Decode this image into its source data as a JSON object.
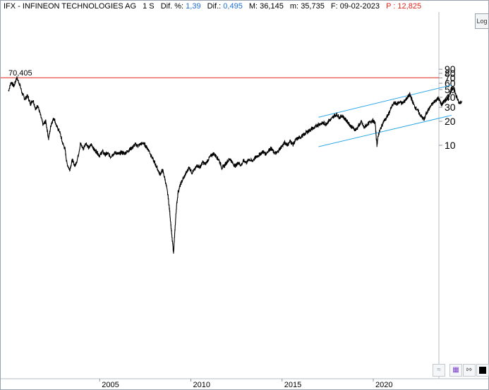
{
  "header": {
    "symbol_name": "IFX - INFINEON TECHNOLOGIES AG",
    "period": "1 S",
    "dif_pct_label": "Dif. %:",
    "dif_pct_value": "1,39",
    "dif_label": "Dif.:",
    "dif_value": "0,495",
    "max_label": "M:",
    "max_value": "36,145",
    "min_label": "m:",
    "min_value": "35,735",
    "date_label": "F:",
    "date_value": "09-02-2023",
    "p_label": "P :",
    "p_value": "12,825"
  },
  "log_button_label": "Log",
  "icons": [
    "wave-icon",
    "save-icon",
    "pin-icon",
    "fill-square-icon"
  ],
  "colors": {
    "price_line": "#000000",
    "channel_lines": "#2ea8e6",
    "max_line": "#e0261b",
    "label_red": "#e0261b",
    "label_blue": "#1f6fd1"
  },
  "chart_data": {
    "type": "line",
    "scale": "log",
    "max_line": {
      "value": 70.405,
      "label": "70,405"
    },
    "y_tick_labels": [
      "90",
      "80",
      "70",
      "60",
      "50",
      "40",
      "30",
      "20",
      "10"
    ],
    "x_tick_labels": [
      "2005",
      "2010",
      "2015",
      "2020"
    ],
    "series": [
      {
        "points": [
          [
            2000.0,
            48
          ],
          [
            2000.15,
            62
          ],
          [
            2000.3,
            55
          ],
          [
            2000.45,
            70.4
          ],
          [
            2000.6,
            60
          ],
          [
            2000.75,
            45
          ],
          [
            2000.9,
            38
          ],
          [
            2001.05,
            42
          ],
          [
            2001.2,
            33
          ],
          [
            2001.35,
            37
          ],
          [
            2001.5,
            28
          ],
          [
            2001.6,
            32
          ],
          [
            2001.75,
            24
          ],
          [
            2001.9,
            18
          ],
          [
            2002.05,
            20
          ],
          [
            2002.2,
            12
          ],
          [
            2002.35,
            19
          ],
          [
            2002.5,
            22
          ],
          [
            2002.65,
            17
          ],
          [
            2002.8,
            15
          ],
          [
            2002.95,
            11
          ],
          [
            2003.1,
            9
          ],
          [
            2003.2,
            6
          ],
          [
            2003.35,
            4.9
          ],
          [
            2003.5,
            6.5
          ],
          [
            2003.65,
            5.5
          ],
          [
            2003.8,
            7
          ],
          [
            2003.95,
            10.5
          ],
          [
            2004.1,
            9
          ],
          [
            2004.25,
            10.8
          ],
          [
            2004.4,
            9.2
          ],
          [
            2004.55,
            10.3
          ],
          [
            2004.7,
            8.8
          ],
          [
            2004.85,
            8.2
          ],
          [
            2005.0,
            7.4
          ],
          [
            2005.15,
            8.4
          ],
          [
            2005.3,
            7.6
          ],
          [
            2005.45,
            7.9
          ],
          [
            2005.6,
            7.2
          ],
          [
            2005.75,
            7.8
          ],
          [
            2005.9,
            8.1
          ],
          [
            2006.05,
            7.7
          ],
          [
            2006.2,
            8.2
          ],
          [
            2006.35,
            7.9
          ],
          [
            2006.5,
            8.3
          ],
          [
            2006.65,
            8.9
          ],
          [
            2006.8,
            9.4
          ],
          [
            2006.95,
            10.3
          ],
          [
            2007.1,
            9.8
          ],
          [
            2007.25,
            10.4
          ],
          [
            2007.4,
            10.6
          ],
          [
            2007.55,
            9.6
          ],
          [
            2007.7,
            8.6
          ],
          [
            2007.85,
            7.2
          ],
          [
            2008.0,
            6.1
          ],
          [
            2008.15,
            5.2
          ],
          [
            2008.3,
            4.3
          ],
          [
            2008.45,
            4.9
          ],
          [
            2008.6,
            3.6
          ],
          [
            2008.75,
            2.3
          ],
          [
            2008.85,
            1.4
          ],
          [
            2008.95,
            0.75
          ],
          [
            2009.05,
            0.45
          ],
          [
            2009.12,
            0.8
          ],
          [
            2009.2,
            1.6
          ],
          [
            2009.3,
            2.6
          ],
          [
            2009.45,
            3.3
          ],
          [
            2009.6,
            3.9
          ],
          [
            2009.75,
            4.5
          ],
          [
            2009.9,
            5.3
          ],
          [
            2010.05,
            4.6
          ],
          [
            2010.2,
            4.9
          ],
          [
            2010.35,
            5.6
          ],
          [
            2010.5,
            5.3
          ],
          [
            2010.65,
            6.1
          ],
          [
            2010.8,
            5.8
          ],
          [
            2010.95,
            6.6
          ],
          [
            2011.1,
            7.4
          ],
          [
            2011.25,
            7.9
          ],
          [
            2011.4,
            7.2
          ],
          [
            2011.55,
            6.5
          ],
          [
            2011.7,
            5.2
          ],
          [
            2011.85,
            5.6
          ],
          [
            2012.0,
            6.3
          ],
          [
            2012.15,
            6.8
          ],
          [
            2012.3,
            5.9
          ],
          [
            2012.45,
            5.5
          ],
          [
            2012.6,
            6.1
          ],
          [
            2012.75,
            5.6
          ],
          [
            2012.9,
            6.4
          ],
          [
            2013.05,
            6.1
          ],
          [
            2013.2,
            6.7
          ],
          [
            2013.35,
            6.3
          ],
          [
            2013.5,
            6.9
          ],
          [
            2013.65,
            7.3
          ],
          [
            2013.8,
            7.8
          ],
          [
            2013.95,
            8.3
          ],
          [
            2014.1,
            7.8
          ],
          [
            2014.25,
            8.6
          ],
          [
            2014.4,
            9.2
          ],
          [
            2014.55,
            8.1
          ],
          [
            2014.7,
            7.9
          ],
          [
            2014.85,
            8.9
          ],
          [
            2015.0,
            9.8
          ],
          [
            2015.15,
            10.8
          ],
          [
            2015.3,
            10.1
          ],
          [
            2015.45,
            11.3
          ],
          [
            2015.6,
            10.2
          ],
          [
            2015.75,
            11.7
          ],
          [
            2015.9,
            12.3
          ],
          [
            2016.05,
            12.9
          ],
          [
            2016.2,
            13.6
          ],
          [
            2016.35,
            14.6
          ],
          [
            2016.5,
            15.4
          ],
          [
            2016.65,
            16.2
          ],
          [
            2016.8,
            16.6
          ],
          [
            2016.95,
            18.1
          ],
          [
            2017.1,
            18.6
          ],
          [
            2017.25,
            19.1
          ],
          [
            2017.4,
            18.4
          ],
          [
            2017.55,
            20.3
          ],
          [
            2017.7,
            21.2
          ],
          [
            2017.85,
            23.4
          ],
          [
            2018.0,
            24.4
          ],
          [
            2018.15,
            22.3
          ],
          [
            2018.3,
            23.6
          ],
          [
            2018.45,
            21.3
          ],
          [
            2018.6,
            19.6
          ],
          [
            2018.75,
            17.6
          ],
          [
            2018.9,
            16.3
          ],
          [
            2019.05,
            15.6
          ],
          [
            2019.2,
            17.6
          ],
          [
            2019.35,
            19.6
          ],
          [
            2019.5,
            16.6
          ],
          [
            2019.65,
            18.1
          ],
          [
            2019.8,
            19.3
          ],
          [
            2019.95,
            20.6
          ],
          [
            2020.1,
            19.1
          ],
          [
            2020.2,
            10.1
          ],
          [
            2020.28,
            13.6
          ],
          [
            2020.4,
            16.1
          ],
          [
            2020.55,
            19.6
          ],
          [
            2020.7,
            21.6
          ],
          [
            2020.85,
            25.1
          ],
          [
            2021.0,
            30.1
          ],
          [
            2021.15,
            34.1
          ],
          [
            2021.3,
            33.1
          ],
          [
            2021.45,
            35.1
          ],
          [
            2021.6,
            33.6
          ],
          [
            2021.75,
            36.6
          ],
          [
            2021.9,
            40.6
          ],
          [
            2022.0,
            43.1
          ],
          [
            2022.1,
            38.1
          ],
          [
            2022.25,
            31.1
          ],
          [
            2022.4,
            28.1
          ],
          [
            2022.55,
            24.6
          ],
          [
            2022.7,
            22.1
          ],
          [
            2022.8,
            21.1
          ],
          [
            2022.9,
            25.1
          ],
          [
            2023.0,
            27.1
          ],
          [
            2023.15,
            31.1
          ],
          [
            2023.3,
            34.1
          ],
          [
            2023.45,
            37.1
          ],
          [
            2023.55,
            39.1
          ],
          [
            2023.65,
            36.1
          ],
          [
            2023.75,
            32.1
          ],
          [
            2023.85,
            35.1
          ],
          [
            2023.95,
            36.1
          ],
          [
            2024.1,
            40.1
          ],
          [
            2024.25,
            47.1
          ],
          [
            2024.4,
            53.1
          ],
          [
            2024.55,
            41.1
          ],
          [
            2024.7,
            34.1
          ],
          [
            2024.85,
            36.145
          ]
        ]
      }
    ],
    "channel_lines": [
      {
        "from": [
          2017.0,
          22.5
        ],
        "to": [
          2024.3,
          57.0
        ]
      },
      {
        "from": [
          2017.0,
          9.6
        ],
        "to": [
          2024.3,
          23.8
        ]
      }
    ]
  }
}
